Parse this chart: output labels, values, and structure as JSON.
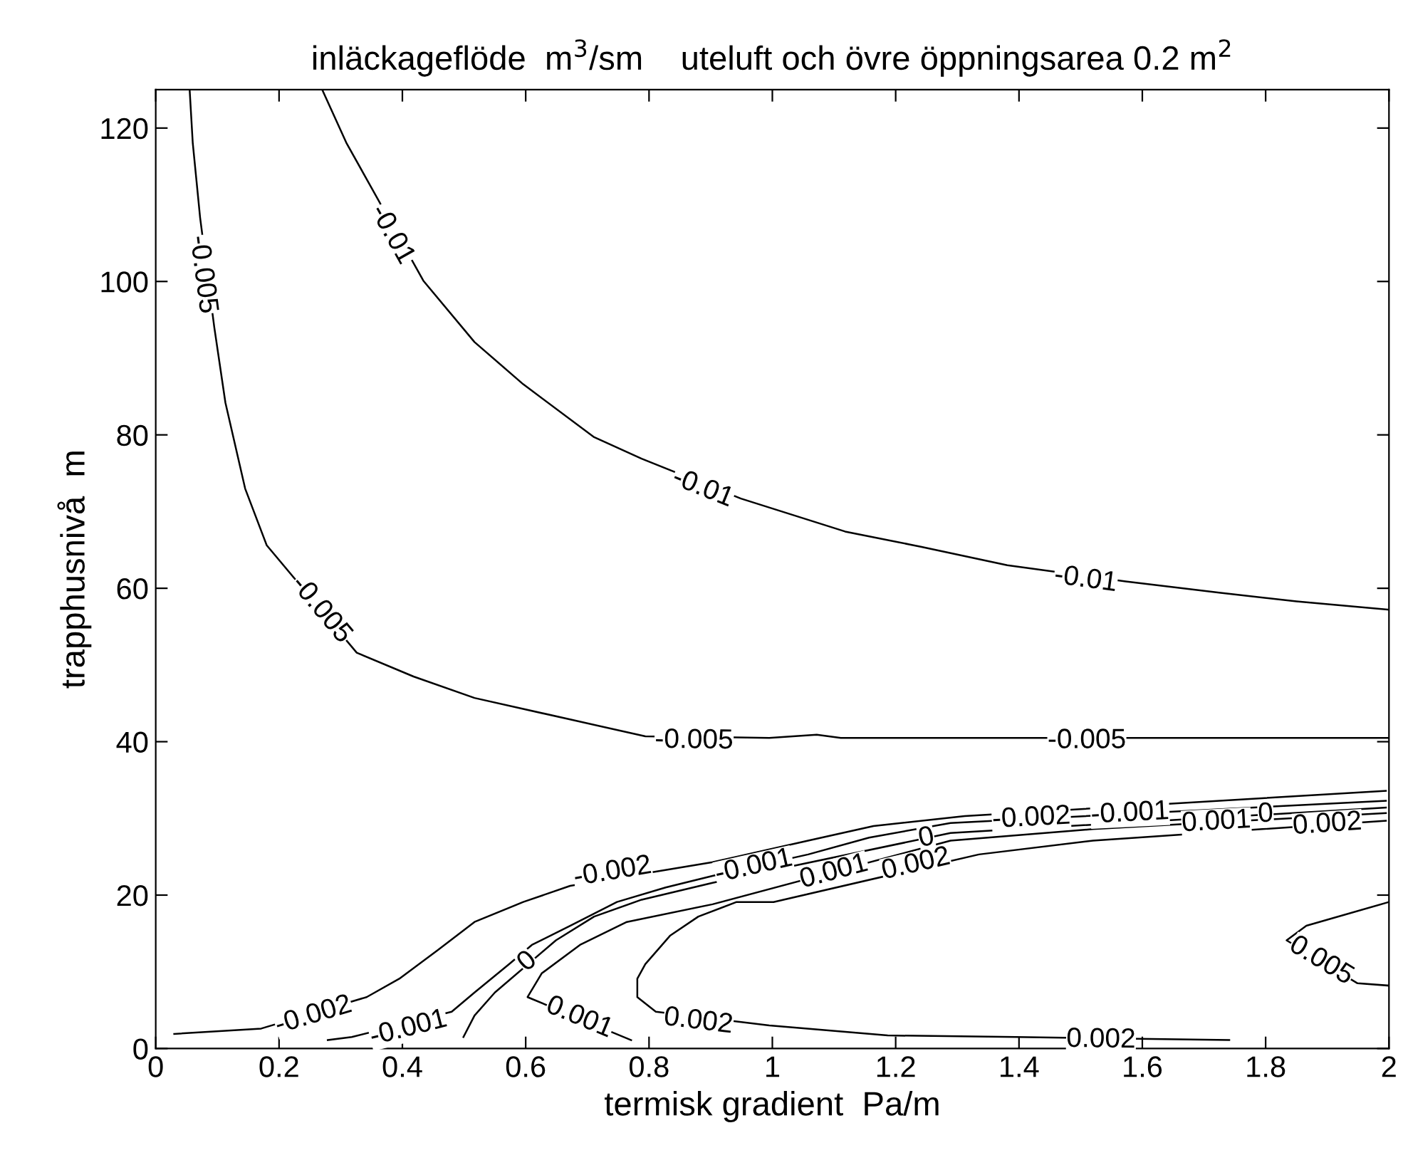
{
  "chart_data": {
    "type": "line",
    "title": "inläckageflöde  m$^{3}$/sm    uteluft och övre öppningsarea 0.2 m$^{2}$",
    "xlabel": "termisk gradient  Pa/m",
    "ylabel": "trapphusnivå  m",
    "xlim": [
      0,
      2
    ],
    "ylim": [
      0,
      125
    ],
    "xticks": [
      0,
      0.2,
      0.4,
      0.6,
      0.8,
      1,
      1.2,
      1.4,
      1.6,
      1.8,
      2
    ],
    "yticks": [
      0,
      20,
      40,
      60,
      80,
      100,
      120
    ],
    "grid": false,
    "series": [
      {
        "color": "#000000",
        "x": [
          0.27,
          0.309,
          0.434,
          0.517,
          0.596,
          0.711,
          0.788,
          0.949,
          1.118,
          1.242,
          1.381,
          1.573,
          1.727,
          1.85,
          2.0
        ],
        "values": [
          125,
          118.1,
          100.1,
          92.1,
          86.6,
          79.7,
          76.9,
          71.7,
          67.4,
          65.4,
          63.0,
          60.9,
          59.4,
          58.3,
          57.2
        ]
      },
      {
        "color": "#000000",
        "x": [
          0.055,
          0.06,
          0.072,
          0.095,
          0.113,
          0.145,
          0.18,
          0.326,
          0.418,
          0.517,
          0.672,
          0.794,
          0.995,
          1.072,
          1.111,
          1.98,
          2.0
        ],
        "values": [
          125,
          118.1,
          108.3,
          94.0,
          84.2,
          73.0,
          65.6,
          51.6,
          48.5,
          45.7,
          42.9,
          40.7,
          40.5,
          40.9,
          40.5,
          40.5,
          40.5
        ]
      },
      {
        "color": "#000000",
        "x": [
          0.03,
          0.171,
          0.342,
          0.395,
          0.457,
          0.517,
          0.596,
          0.672,
          0.903,
          1.058,
          1.164,
          1.312,
          1.995
        ],
        "values": [
          1.9,
          2.6,
          6.7,
          9.1,
          12.8,
          16.5,
          19.1,
          21.2,
          24.3,
          27.1,
          29.0,
          30.3,
          33.6
        ]
      },
      {
        "color": "#000000",
        "x": [
          0.279,
          0.318,
          0.48,
          0.517,
          0.573,
          0.61,
          0.672,
          0.748,
          0.827,
          0.903,
          1.058,
          1.157,
          1.289,
          1.995
        ],
        "values": [
          1.1,
          1.5,
          4.8,
          7.3,
          11.0,
          13.5,
          16.0,
          19.1,
          21.0,
          22.5,
          25.3,
          27.5,
          29.4,
          32.3
        ]
      },
      {
        "color": "#000000",
        "x": [
          0.499,
          0.517,
          0.55,
          0.649,
          0.711,
          0.788,
          0.903,
          1.289,
          1.995
        ],
        "values": [
          1.5,
          4.3,
          7.3,
          14.1,
          17.2,
          19.4,
          21.6,
          28.1,
          31.4
        ]
      },
      {
        "color": "#000000",
        "x": [
          0.771,
          0.603,
          0.626,
          0.688,
          0.764,
          0.903,
          1.289,
          1.52,
          1.995
        ],
        "values": [
          1.1,
          6.7,
          9.8,
          13.5,
          16.5,
          18.8,
          27.1,
          28.6,
          30.7
        ]
      },
      {
        "color": "#000000",
        "x": [
          1.741,
          1.395,
          1.187,
          0.995,
          0.811,
          0.781,
          0.781,
          0.794,
          0.834,
          0.88,
          0.942,
          1.002,
          1.335,
          1.52,
          1.995
        ],
        "values": [
          1.1,
          1.5,
          1.7,
          3.0,
          4.8,
          6.7,
          9.1,
          11.0,
          14.7,
          17.2,
          19.1,
          19.1,
          25.3,
          27.1,
          29.7
        ]
      },
      {
        "color": "#000000",
        "x": [
          2.0,
          1.866,
          1.834,
          1.949,
          2.0
        ],
        "values": [
          19.1,
          16.0,
          14.1,
          8.5,
          8.2
        ]
      }
    ],
    "annotations": [
      {
        "text": "-0.01",
        "x": 0.383,
        "y": 106.1
      },
      {
        "text": "-0.01",
        "x": 0.887,
        "y": 73.0
      },
      {
        "text": "-0.01",
        "x": 1.508,
        "y": 61.1
      },
      {
        "text": "-0.005",
        "x": 0.076,
        "y": 100.9
      },
      {
        "text": "-0.005",
        "x": 0.268,
        "y": 57.2
      },
      {
        "text": "-0.005",
        "x": 0.873,
        "y": 40.1
      },
      {
        "text": "-0.005",
        "x": 1.51,
        "y": 40.1
      },
      {
        "text": "-0.002",
        "x": 0.256,
        "y": 4.3
      },
      {
        "text": "-0.002",
        "x": 0.741,
        "y": 23.0
      },
      {
        "text": "-0.002",
        "x": 1.42,
        "y": 30.0
      },
      {
        "text": "-0.001",
        "x": 0.41,
        "y": 2.6
      },
      {
        "text": "-0.001",
        "x": 0.97,
        "y": 23.7
      },
      {
        "text": "-0.001",
        "x": 1.58,
        "y": 30.6
      },
      {
        "text": "0",
        "x": 0.603,
        "y": 11.3
      },
      {
        "text": "0",
        "x": 1.25,
        "y": 27.4
      },
      {
        "text": "0",
        "x": 1.8,
        "y": 30.5
      },
      {
        "text": "0.001",
        "x": 0.687,
        "y": 4.0
      },
      {
        "text": "0.001",
        "x": 1.1,
        "y": 23.0
      },
      {
        "text": "0.001",
        "x": 1.72,
        "y": 29.5
      },
      {
        "text": "0.002",
        "x": 0.88,
        "y": 3.5
      },
      {
        "text": "0.002",
        "x": 1.533,
        "y": 1.1
      },
      {
        "text": "0.002",
        "x": 1.233,
        "y": 24.0
      },
      {
        "text": "0.002",
        "x": 1.9,
        "y": 29.2
      },
      {
        "text": "0.005",
        "x": 1.89,
        "y": 11.4
      }
    ]
  }
}
